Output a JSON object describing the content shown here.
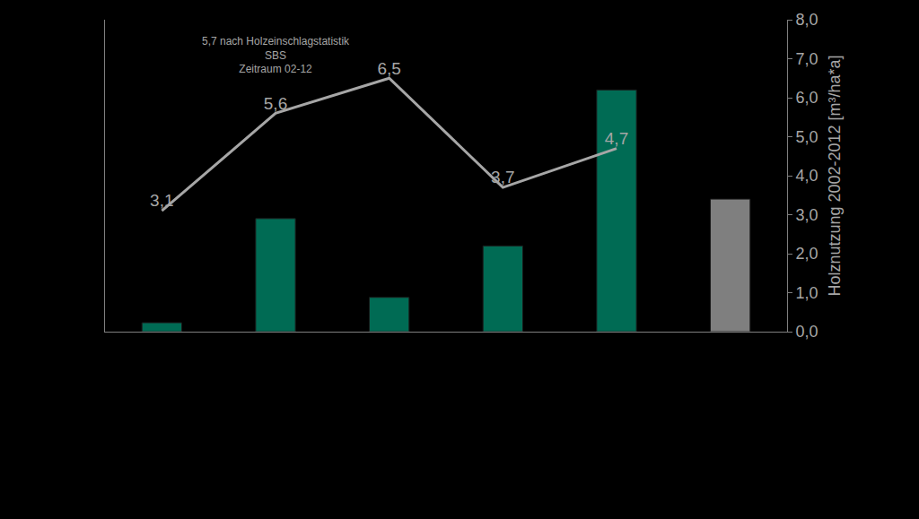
{
  "chart_data": {
    "type": "bar",
    "categories": [
      null,
      null,
      null,
      null,
      null,
      null
    ],
    "y_label": "Holznutzung 2002-2012 [m³/ha*a]",
    "ylim": [
      0,
      8
    ],
    "yticks": [
      {
        "value": 0,
        "label": "0,0"
      },
      {
        "value": 1,
        "label": "1,0"
      },
      {
        "value": 2,
        "label": "2,0"
      },
      {
        "value": 3,
        "label": "3,0"
      },
      {
        "value": 4,
        "label": "4,0"
      },
      {
        "value": 5,
        "label": "5,0"
      },
      {
        "value": 6,
        "label": "6,0"
      },
      {
        "value": 7,
        "label": "7,0"
      },
      {
        "value": 8,
        "label": "8,0"
      }
    ],
    "grid": false,
    "series": [
      {
        "type": "bar",
        "colors": [
          "#006b54",
          "#006b54",
          "#006b54",
          "#006b54",
          "#006b54",
          "#7f7f7f"
        ],
        "values": [
          0.23,
          2.9,
          0.88,
          2.2,
          6.2,
          3.4
        ]
      },
      {
        "type": "line",
        "color": "#a6a6a6",
        "data_labels": true,
        "values": [
          3.1,
          5.6,
          6.5,
          3.7,
          4.7,
          null
        ],
        "value_labels": [
          "3,1",
          "5,6",
          "6,5",
          "3,7",
          "4,7",
          null
        ]
      }
    ],
    "annotations": [
      {
        "text": [
          "5,7 nach Holzeinschlagstatistik",
          "SBS",
          "Zeitraum 02-12"
        ],
        "category_index": 1,
        "y": 7.1
      }
    ]
  }
}
